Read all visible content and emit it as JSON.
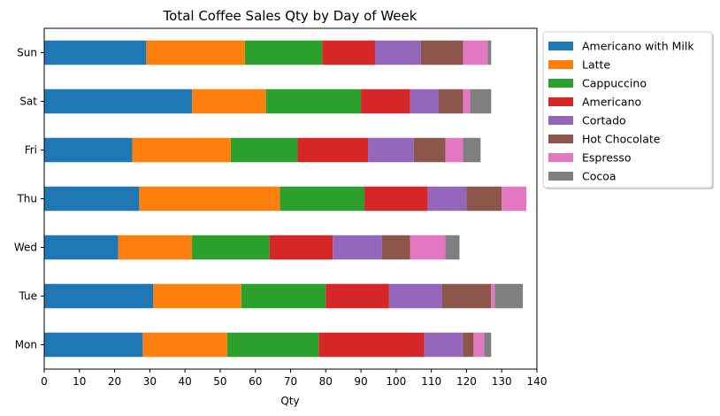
{
  "chart_data": {
    "type": "bar",
    "orientation": "horizontal",
    "stacked": true,
    "title": "Total Coffee Sales Qty by Day of Week",
    "xlabel": "Qty",
    "ylabel": "",
    "xlim": [
      0,
      140
    ],
    "xticks": [
      "0",
      "10",
      "20",
      "30",
      "40",
      "50",
      "60",
      "70",
      "80",
      "90",
      "100",
      "110",
      "120",
      "130",
      "140"
    ],
    "categories": [
      "Mon",
      "Tue",
      "Wed",
      "Thu",
      "Fri",
      "Sat",
      "Sun"
    ],
    "grid": false,
    "legend_position": "outside-top-right",
    "series": [
      {
        "name": "Americano with Milk",
        "color": "#1f77b4",
        "values": [
          28,
          31,
          21,
          27,
          25,
          42,
          29
        ]
      },
      {
        "name": "Latte",
        "color": "#ff7f0e",
        "values": [
          24,
          25,
          21,
          40,
          28,
          21,
          28
        ]
      },
      {
        "name": "Cappuccino",
        "color": "#2ca02c",
        "values": [
          26,
          24,
          22,
          24,
          19,
          27,
          22
        ]
      },
      {
        "name": "Americano",
        "color": "#d62728",
        "values": [
          30,
          18,
          18,
          18,
          20,
          14,
          15
        ]
      },
      {
        "name": "Cortado",
        "color": "#9467bd",
        "values": [
          11,
          15,
          14,
          11,
          13,
          8,
          13
        ]
      },
      {
        "name": "Hot Chocolate",
        "color": "#8c564b",
        "values": [
          3,
          14,
          8,
          10,
          9,
          7,
          12
        ]
      },
      {
        "name": "Espresso",
        "color": "#e377c2",
        "values": [
          3,
          1,
          10,
          7,
          5,
          2,
          7
        ]
      },
      {
        "name": "Cocoa",
        "color": "#7f7f7f",
        "values": [
          2,
          8,
          4,
          0,
          5,
          6,
          1
        ]
      }
    ]
  }
}
